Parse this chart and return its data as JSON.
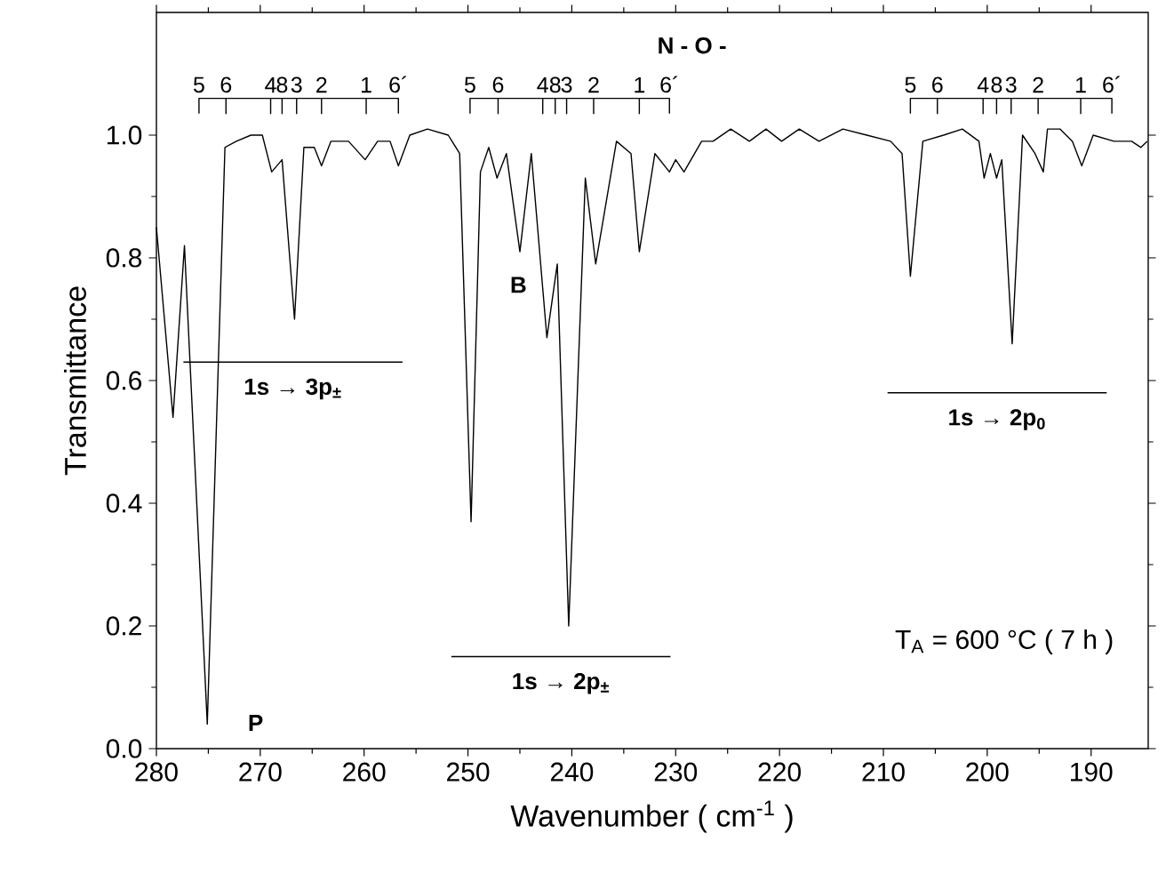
{
  "chart_data": {
    "type": "line",
    "xlabel": "Wavenumber ( cm$^{-1}$ )",
    "ylabel": "Transmittance",
    "xlim": [
      280,
      184.5
    ],
    "xticks": [
      280,
      270,
      260,
      250,
      240,
      230,
      220,
      210,
      200,
      190
    ],
    "ylim": [
      0,
      1.2
    ],
    "yticks": [
      {
        "value": 0,
        "label": "0.0"
      },
      0.2,
      0.4,
      0.6,
      0.8,
      {
        "value": 1,
        "label": "1.0"
      }
    ],
    "grid": false,
    "marker": "none",
    "line_style": "solid",
    "series": [
      {
        "color": "#000000",
        "x": [
          280,
          278.4,
          277.3,
          275.1,
          273.4,
          272.3,
          270.9,
          269.8,
          268.9,
          267.9,
          266.7,
          265.8,
          264.8,
          264.1,
          263.2,
          261.5,
          259.9,
          258.7,
          257.5,
          256.7,
          255.6,
          253.9,
          251.9,
          250.8,
          249.7,
          248.8,
          248.0,
          247.2,
          246.3,
          245.0,
          243.9,
          242.4,
          241.4,
          240.3,
          238.7,
          237.7,
          235.7,
          234.3,
          233.5,
          232.0,
          230.6,
          230.0,
          229.2,
          227.5,
          226.4,
          224.7,
          222.9,
          221.3,
          219.8,
          218.1,
          216.2,
          213.9,
          211.6,
          209.3,
          208.2,
          207.4,
          206.2,
          204.2,
          202.4,
          200.8,
          200.3,
          199.7,
          199.1,
          198.6,
          197.6,
          196.6,
          195.4,
          194.6,
          194.2,
          193.0,
          191.8,
          190.9,
          189.8,
          187.8,
          186.1,
          185.2,
          184.6
        ],
        "values": [
          0.85,
          0.54,
          0.82,
          0.04,
          0.98,
          0.99,
          1.0,
          1.0,
          0.94,
          0.96,
          0.7,
          0.98,
          0.98,
          0.95,
          0.99,
          0.99,
          0.96,
          0.99,
          0.99,
          0.95,
          1.0,
          1.01,
          1.0,
          0.97,
          0.37,
          0.94,
          0.98,
          0.93,
          0.97,
          0.81,
          0.97,
          0.67,
          0.79,
          0.2,
          0.93,
          0.79,
          0.99,
          0.97,
          0.81,
          0.97,
          0.94,
          0.96,
          0.94,
          0.99,
          0.99,
          1.01,
          0.99,
          1.01,
          0.99,
          1.01,
          0.99,
          1.01,
          1.0,
          0.99,
          0.97,
          0.77,
          0.99,
          1.0,
          1.01,
          0.99,
          0.93,
          0.97,
          0.93,
          0.96,
          0.66,
          1.0,
          0.97,
          0.94,
          1.01,
          1.01,
          0.99,
          0.95,
          1.0,
          0.99,
          0.99,
          0.98,
          0.99
        ]
      },
      {
        "color": "#000000",
        "x": [
          275.9,
          275.9,
          273.3,
          273.3,
          273.3,
          269.0,
          269.0,
          269.0,
          267.9,
          267.9,
          267.9,
          266.5,
          266.5,
          266.5,
          264.1,
          264.1,
          264.1,
          259.8,
          259.8,
          259.8,
          256.7,
          256.7
        ],
        "values": [
          1.035,
          1.06,
          1.06,
          1.035,
          1.06,
          1.06,
          1.035,
          1.06,
          1.06,
          1.035,
          1.06,
          1.06,
          1.035,
          1.06,
          1.06,
          1.035,
          1.06,
          1.06,
          1.035,
          1.06,
          1.06,
          1.035
        ]
      },
      {
        "color": "#000000",
        "x": [
          249.8,
          249.8,
          247.1,
          247.1,
          247.1,
          242.8,
          242.8,
          242.8,
          241.6,
          241.6,
          241.6,
          240.5,
          240.5,
          240.5,
          237.9,
          237.9,
          237.9,
          233.5,
          233.5,
          233.5,
          230.6,
          230.6
        ],
        "values": [
          1.035,
          1.06,
          1.06,
          1.035,
          1.06,
          1.06,
          1.035,
          1.06,
          1.06,
          1.035,
          1.06,
          1.06,
          1.035,
          1.06,
          1.06,
          1.035,
          1.06,
          1.06,
          1.035,
          1.06,
          1.06,
          1.035
        ]
      },
      {
        "color": "#000000",
        "x": [
          207.4,
          207.4,
          204.8,
          204.8,
          204.8,
          200.4,
          200.4,
          200.4,
          199.1,
          199.1,
          199.1,
          197.7,
          197.7,
          197.7,
          195.1,
          195.1,
          195.1,
          191.0,
          191.0,
          191.0,
          188.0,
          188.0
        ],
        "values": [
          1.035,
          1.06,
          1.06,
          1.035,
          1.06,
          1.06,
          1.035,
          1.06,
          1.06,
          1.035,
          1.06,
          1.06,
          1.035,
          1.06,
          1.06,
          1.035,
          1.06,
          1.06,
          1.035,
          1.06,
          1.06,
          1.035
        ]
      },
      {
        "color": "#000000",
        "x": [
          277.4,
          256.3
        ],
        "values": [
          0.63,
          0.63
        ]
      },
      {
        "color": "#000000",
        "x": [
          251.6,
          230.5
        ],
        "values": [
          0.15,
          0.15
        ]
      },
      {
        "color": "#000000",
        "x": [
          209.6,
          188.5
        ],
        "values": [
          0.58,
          0.58
        ]
      }
    ],
    "annotations": [
      "N - O -",
      "5",
      "6",
      "4",
      "8",
      "3",
      "2",
      "1",
      "6´",
      "5",
      "6",
      "4",
      "8",
      "3",
      "2",
      "1",
      "6´",
      "5",
      "6",
      "4",
      "8",
      "3",
      "2",
      "1",
      "6´",
      "1s → 3p$_{±}$",
      "1s → 2p$_{±}$",
      "1s → 2p$_{0}$",
      "P",
      "B",
      "T$_{A}$ =  600 °C ( 7 h )"
    ]
  }
}
